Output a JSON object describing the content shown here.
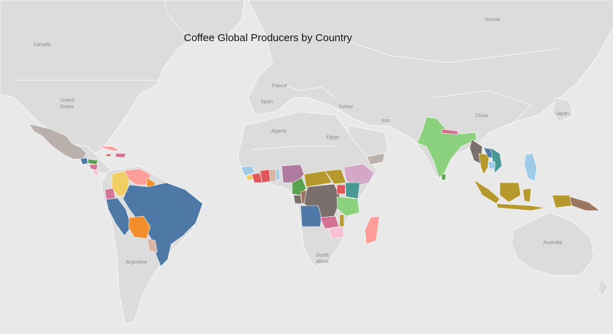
{
  "title": "Coffee Global Producers by Country",
  "labels": {
    "canada": "Canada",
    "united_states_1": "United",
    "united_states_2": "States",
    "russia": "Russia",
    "france": "France",
    "spain": "Spain",
    "turkey": "Turkey",
    "algeria": "Algeria",
    "egypt": "Egypt",
    "iran": "Iran",
    "china": "China",
    "japan": "Japan",
    "australia": "Australia",
    "argentina": "Argentina",
    "south_africa_1": "South",
    "south_africa_2": "Africa"
  },
  "colors": {
    "ocean": "#e9e9e9",
    "land": "#dcdcdc",
    "blue": "#4e79a7",
    "orange": "#f28e2b",
    "red": "#e15759",
    "salmon": "#ff9d9a",
    "green": "#59a14f",
    "lightgreen": "#8cd17d",
    "olive": "#b6992d",
    "yellow": "#f1ce63",
    "teal": "#499894",
    "lightblue": "#a0cbe8",
    "purple": "#b07aa1",
    "lilac": "#d4a6c8",
    "pink": "#fabfd2",
    "brown": "#9d7660",
    "taupe": "#bab0ac",
    "gray": "#79706e",
    "rose": "#d37295",
    "tan": "#d7b5a6"
  }
}
